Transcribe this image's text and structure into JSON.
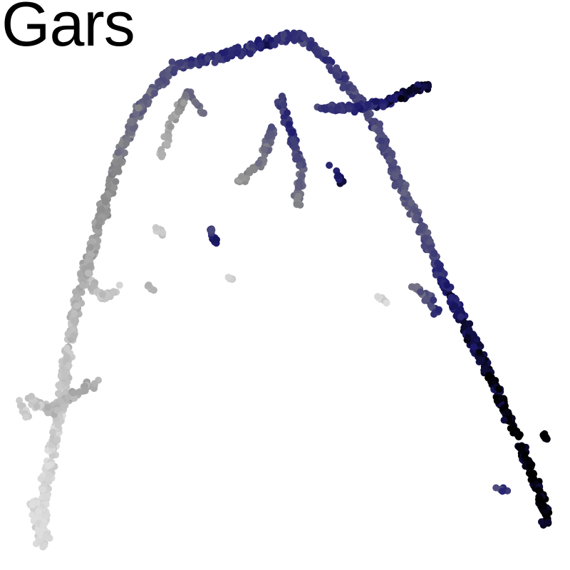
{
  "chart_data": {
    "type": "scatter",
    "title": "Gars",
    "xlabel": "",
    "ylabel": "",
    "axes": "none",
    "grid": false,
    "legend": "none",
    "color_scale": {
      "low": "#dedede",
      "mid": "#8a8a8a",
      "high_blue": "#1d1a6e",
      "max": "#000000"
    },
    "branches": [
      {
        "path": [
          [
            0.07,
            0.96
          ],
          [
            0.08,
            0.85
          ],
          [
            0.1,
            0.75
          ],
          [
            0.12,
            0.62
          ],
          [
            0.14,
            0.51
          ],
          [
            0.17,
            0.41
          ],
          [
            0.2,
            0.3
          ],
          [
            0.24,
            0.2
          ],
          [
            0.3,
            0.12
          ],
          [
            0.38,
            0.1
          ],
          [
            0.46,
            0.08
          ],
          [
            0.52,
            0.06
          ],
          [
            0.56,
            0.09
          ],
          [
            0.6,
            0.14
          ],
          [
            0.64,
            0.19
          ],
          [
            0.67,
            0.24
          ],
          [
            0.7,
            0.32
          ],
          [
            0.73,
            0.38
          ],
          [
            0.76,
            0.45
          ],
          [
            0.79,
            0.52
          ],
          [
            0.83,
            0.6
          ],
          [
            0.86,
            0.66
          ],
          [
            0.89,
            0.73
          ],
          [
            0.92,
            0.8
          ],
          [
            0.95,
            0.87
          ],
          [
            0.96,
            0.92
          ]
        ],
        "levels": [
          0.02,
          0.05,
          0.08,
          0.15,
          0.25,
          0.35,
          0.45,
          0.55,
          0.68,
          0.78,
          0.82,
          0.76,
          0.74,
          0.72,
          0.7,
          0.68,
          0.66,
          0.6,
          0.7,
          0.85,
          0.92,
          0.97,
          0.99,
          1.0,
          1.0,
          0.98
        ],
        "count": 1300,
        "spread": 0.012
      },
      {
        "path": [
          [
            0.56,
            0.19
          ],
          [
            0.62,
            0.19
          ],
          [
            0.68,
            0.18
          ],
          [
            0.72,
            0.16
          ],
          [
            0.75,
            0.15
          ]
        ],
        "levels": [
          0.72,
          0.8,
          0.88,
          0.92,
          0.95
        ],
        "count": 170,
        "spread": 0.008
      },
      {
        "path": [
          [
            0.49,
            0.17
          ],
          [
            0.51,
            0.23
          ],
          [
            0.53,
            0.3
          ],
          [
            0.52,
            0.36
          ]
        ],
        "levels": [
          0.72,
          0.78,
          0.6,
          0.5
        ],
        "count": 110,
        "spread": 0.009
      },
      {
        "path": [
          [
            0.48,
            0.22
          ],
          [
            0.46,
            0.28
          ],
          [
            0.42,
            0.32
          ]
        ],
        "levels": [
          0.65,
          0.5,
          0.4
        ],
        "count": 60,
        "spread": 0.008
      },
      {
        "path": [
          [
            0.36,
            0.2
          ],
          [
            0.33,
            0.16
          ],
          [
            0.3,
            0.22
          ],
          [
            0.28,
            0.28
          ]
        ],
        "levels": [
          0.6,
          0.5,
          0.3,
          0.2
        ],
        "count": 60,
        "spread": 0.007
      },
      {
        "path": [
          [
            0.37,
            0.4
          ],
          [
            0.38,
            0.43
          ]
        ],
        "levels": [
          0.7,
          0.9
        ],
        "count": 20,
        "spread": 0.006
      },
      {
        "path": [
          [
            0.15,
            0.48
          ],
          [
            0.18,
            0.52
          ],
          [
            0.22,
            0.5
          ]
        ],
        "levels": [
          0.2,
          0.15,
          0.1
        ],
        "count": 30,
        "spread": 0.01
      },
      {
        "path": [
          [
            0.58,
            0.29
          ],
          [
            0.6,
            0.32
          ]
        ],
        "levels": [
          0.8,
          0.9
        ],
        "count": 10,
        "spread": 0.005
      },
      {
        "path": [
          [
            0.27,
            0.4
          ],
          [
            0.29,
            0.41
          ]
        ],
        "levels": [
          0.1,
          0.1
        ],
        "count": 10,
        "spread": 0.006
      },
      {
        "path": [
          [
            0.26,
            0.5
          ],
          [
            0.27,
            0.51
          ]
        ],
        "levels": [
          0.2,
          0.2
        ],
        "count": 6,
        "spread": 0.005
      },
      {
        "path": [
          [
            0.4,
            0.49
          ],
          [
            0.41,
            0.49
          ]
        ],
        "levels": [
          0.1,
          0.1
        ],
        "count": 6,
        "spread": 0.005
      },
      {
        "path": [
          [
            0.66,
            0.52
          ],
          [
            0.68,
            0.53
          ]
        ],
        "levels": [
          0.05,
          0.05
        ],
        "count": 8,
        "spread": 0.005
      },
      {
        "path": [
          [
            0.72,
            0.5
          ],
          [
            0.75,
            0.52
          ],
          [
            0.77,
            0.55
          ]
        ],
        "levels": [
          0.5,
          0.65,
          0.8
        ],
        "count": 30,
        "spread": 0.008
      },
      {
        "path": [
          [
            0.87,
            0.86
          ],
          [
            0.89,
            0.86
          ]
        ],
        "levels": [
          0.7,
          0.75
        ],
        "count": 10,
        "spread": 0.006
      },
      {
        "path": [
          [
            0.95,
            0.76
          ],
          [
            0.96,
            0.77
          ]
        ],
        "levels": [
          1.0,
          1.0
        ],
        "count": 8,
        "spread": 0.004
      },
      {
        "path": [
          [
            0.05,
            0.7
          ],
          [
            0.09,
            0.72
          ],
          [
            0.15,
            0.68
          ],
          [
            0.17,
            0.67
          ]
        ],
        "levels": [
          0.1,
          0.2,
          0.3,
          0.25
        ],
        "count": 80,
        "spread": 0.012
      },
      {
        "path": [
          [
            0.03,
            0.7
          ],
          [
            0.05,
            0.73
          ]
        ],
        "levels": [
          0.1,
          0.1
        ],
        "count": 10,
        "spread": 0.006
      },
      {
        "path": [
          [
            0.06,
            0.88
          ],
          [
            0.07,
            0.92
          ],
          [
            0.08,
            0.94
          ]
        ],
        "levels": [
          0.02,
          0.02,
          0.02
        ],
        "count": 80,
        "spread": 0.012
      }
    ]
  }
}
